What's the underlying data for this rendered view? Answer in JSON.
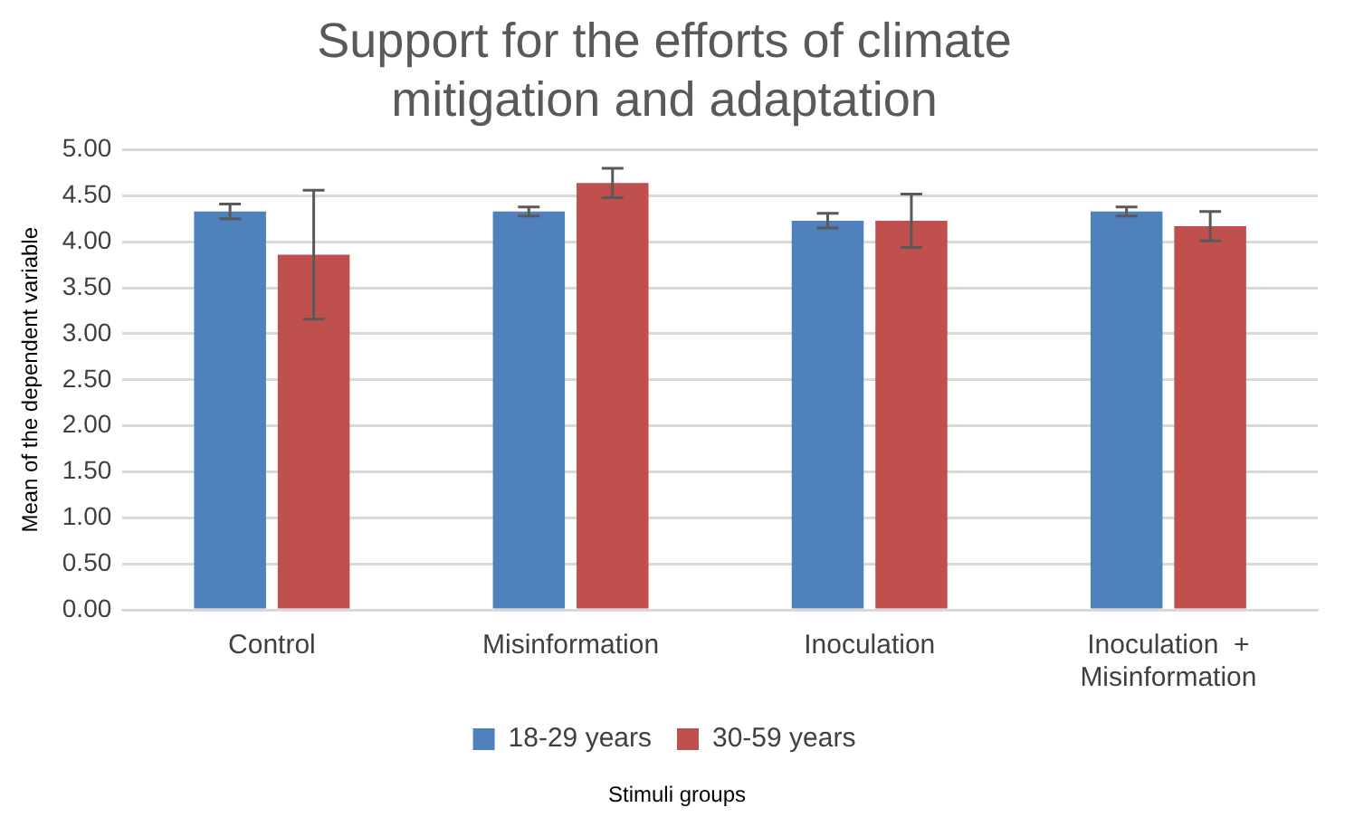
{
  "chart_data": {
    "type": "bar",
    "title": "Support for the efforts of climate mitigation and adaptation",
    "xlabel": "Stimuli groups",
    "ylabel": "Mean of the dependent variable",
    "categories": [
      "Control",
      "Misinformation",
      "Inoculation",
      "Inoculation  + Misinformation"
    ],
    "series": [
      {
        "name": "18-29 years",
        "color": "#4f81bd",
        "values": [
          4.33,
          4.33,
          4.23,
          4.33
        ],
        "errors": [
          0.08,
          0.05,
          0.08,
          0.05
        ]
      },
      {
        "name": "30-59 years",
        "color": "#c0504d",
        "values": [
          3.86,
          4.64,
          4.23,
          4.17
        ],
        "errors": [
          0.7,
          0.16,
          0.29,
          0.16
        ]
      }
    ],
    "ylim": [
      0,
      5
    ],
    "yticks": [
      {
        "value": 0,
        "label": "0.00"
      },
      {
        "value": 0.5,
        "label": "0.50"
      },
      {
        "value": 1,
        "label": "1.00"
      },
      {
        "value": 1.5,
        "label": "1.50"
      },
      {
        "value": 2,
        "label": "2.00"
      },
      {
        "value": 2.5,
        "label": "2.50"
      },
      {
        "value": 3,
        "label": "3.00"
      },
      {
        "value": 3.5,
        "label": "3.50"
      },
      {
        "value": 4,
        "label": "4.00"
      },
      {
        "value": 4.5,
        "label": "4.50"
      },
      {
        "value": 5,
        "label": "5.00"
      }
    ],
    "grid": "y",
    "legend": "bottom"
  }
}
